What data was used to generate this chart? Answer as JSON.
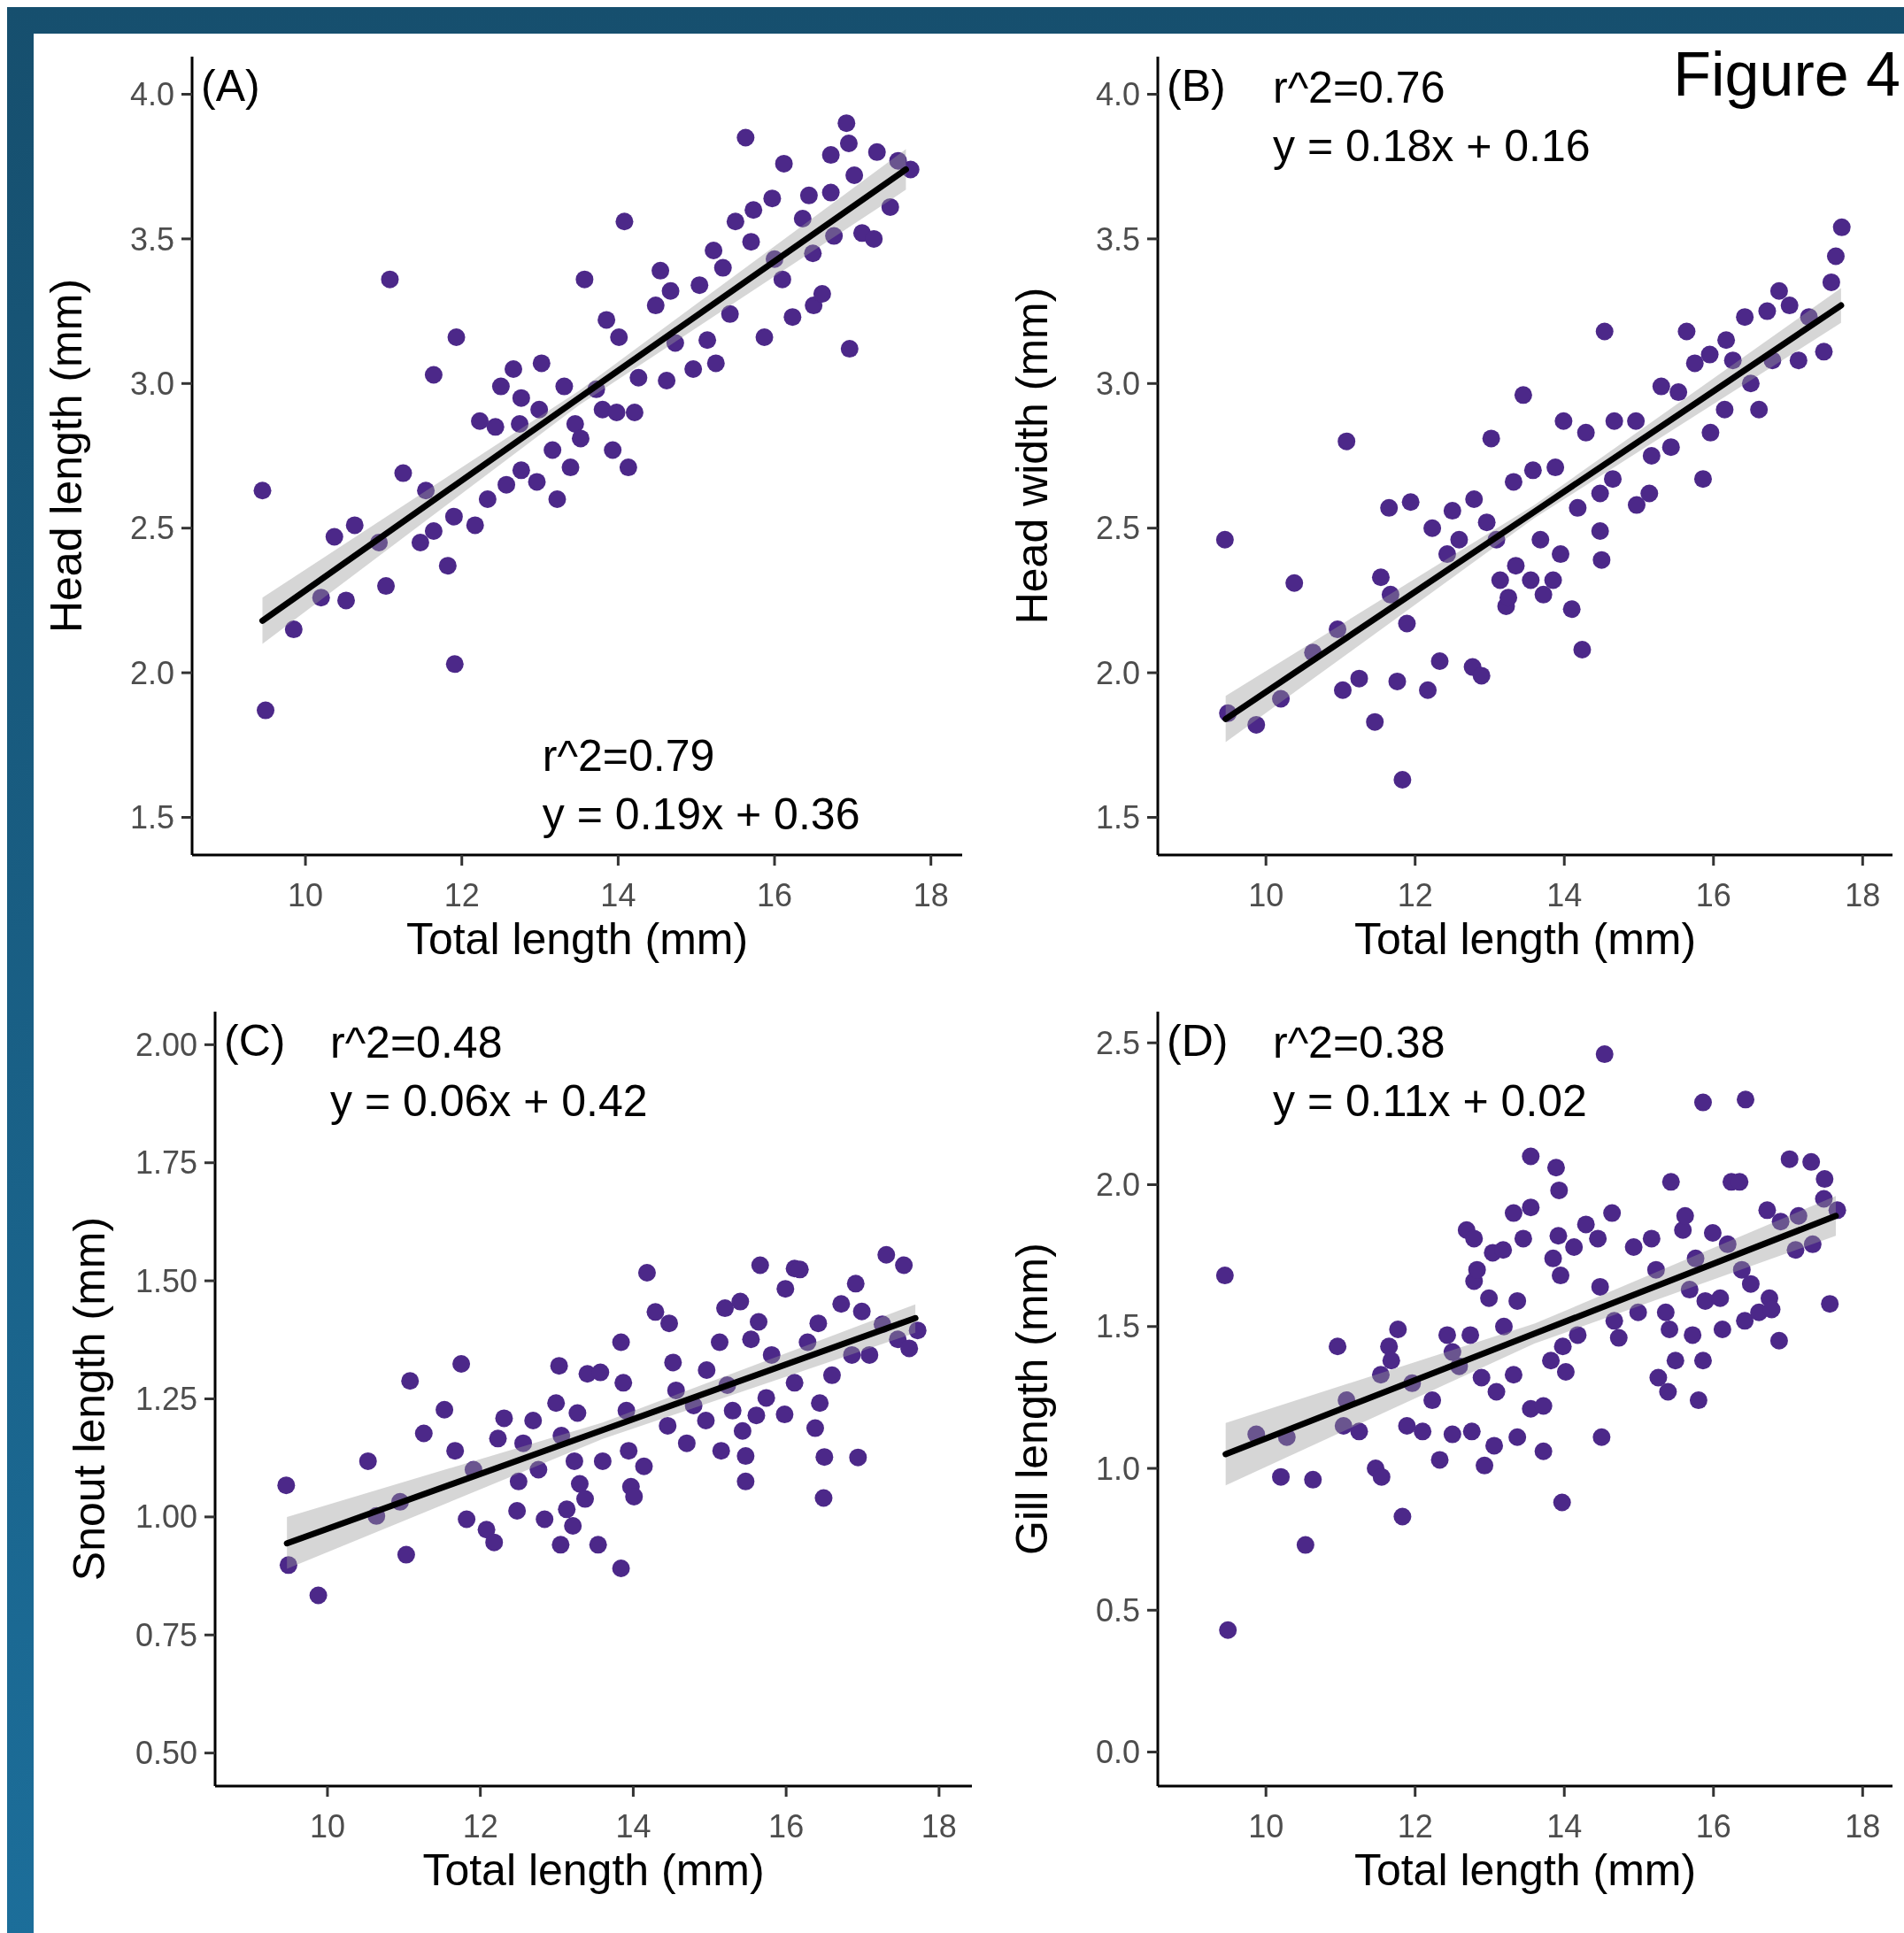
{
  "chart_data": [
    {
      "type": "scatter",
      "xlabel": "Total length (mm)",
      "ylabel": "Head length (mm)",
      "xlim": [
        8.55,
        18.4
      ],
      "ylim": [
        1.37,
        4.13
      ],
      "xticks": [
        10,
        12,
        14,
        16,
        18
      ],
      "yticks": [
        {
          "value": 1.5,
          "label": "1.5"
        },
        {
          "value": 2,
          "label": "2.0"
        },
        {
          "value": 2.5,
          "label": "2.5"
        },
        {
          "value": 3,
          "label": "3.0"
        },
        {
          "value": 3.5,
          "label": "3.5"
        },
        {
          "value": 4,
          "label": "4.0"
        }
      ],
      "annotations": [
        "(A)",
        "r^2=0.79",
        "y = 0.19x + 0.36"
      ],
      "series": [
        {
          "marker": "circle",
          "color": "#4c2889",
          "x": [
            9.45,
            9.49,
            9.85,
            10.2,
            10.52,
            10.37,
            10.63,
            10.94,
            11.03,
            11.08,
            11.25,
            11.54,
            11.47,
            11.64,
            11.82,
            11.9,
            11.64,
            11.93,
            11.91,
            12.17,
            12.23,
            12.33,
            12.43,
            12.5,
            12.57,
            12.66,
            12.76,
            12.76,
            12.74,
            13.02,
            12.99,
            12.96,
            13.16,
            13.22,
            13.31,
            13.39,
            13.45,
            13.57,
            13.52,
            13.72,
            13.8,
            13.93,
            14.13,
            13.85,
            14.01,
            13.98,
            14.08,
            14.21,
            14.26,
            14.48,
            14.54,
            14.62,
            14.67,
            14.73,
            14.96,
            15.14,
            15.25,
            15.04,
            15.22,
            15.34,
            15.43,
            15.5,
            15.63,
            15.73,
            15.7,
            15.87,
            15.97,
            16.0,
            16.12,
            16.1,
            16.23,
            16.36,
            16.44,
            16.49,
            16.5,
            16.61,
            16.72,
            16.72,
            16.76,
            16.92,
            16.95,
            16.96,
            17.02,
            17.12,
            17.27,
            17.31,
            17.48,
            17.58,
            17.74
          ],
          "values": [
            2.63,
            1.87,
            2.15,
            2.26,
            2.25,
            2.47,
            2.51,
            2.45,
            2.3,
            3.36,
            2.69,
            2.63,
            2.45,
            2.49,
            2.37,
            2.54,
            3.03,
            3.16,
            2.03,
            2.51,
            2.87,
            2.6,
            2.85,
            2.99,
            2.65,
            3.05,
            2.95,
            2.7,
            2.86,
            3.07,
            2.91,
            2.66,
            2.77,
            2.6,
            2.99,
            2.71,
            2.86,
            3.36,
            2.81,
            2.98,
            2.91,
            2.77,
            2.71,
            3.22,
            3.16,
            2.9,
            3.56,
            2.9,
            3.02,
            3.27,
            3.39,
            3.01,
            3.32,
            3.14,
            3.05,
            3.15,
            3.07,
            3.34,
            3.46,
            3.4,
            3.24,
            3.56,
            3.85,
            3.6,
            3.49,
            3.16,
            3.64,
            3.43,
            3.76,
            3.36,
            3.23,
            3.57,
            3.65,
            3.45,
            3.27,
            3.31,
            3.79,
            3.66,
            3.51,
            3.9,
            3.83,
            3.12,
            3.72,
            3.52,
            3.5,
            3.8,
            3.61,
            3.77,
            3.74
          ]
        },
        {
          "type": "line",
          "color": "#000000",
          "x": [
            9.45,
            13.5,
            17.68
          ],
          "values": [
            2.18,
            2.95,
            3.74
          ],
          "lower": [
            2.1,
            2.925,
            3.67
          ],
          "upper": [
            2.26,
            2.975,
            3.81
          ]
        }
      ]
    },
    {
      "type": "scatter",
      "xlabel": "Total length (mm)",
      "ylabel": "Head width (mm)",
      "xlim": [
        8.55,
        18.4
      ],
      "ylim": [
        1.37,
        4.13
      ],
      "xticks": [
        10,
        12,
        14,
        16,
        18
      ],
      "yticks": [
        {
          "value": 1.5,
          "label": "1.5"
        },
        {
          "value": 2,
          "label": "2.0"
        },
        {
          "value": 2.5,
          "label": "2.5"
        },
        {
          "value": 3,
          "label": "3.0"
        },
        {
          "value": 3.5,
          "label": "3.5"
        },
        {
          "value": 4,
          "label": "4.0"
        }
      ],
      "annotations": [
        "(B)",
        "r^2=0.76",
        "y = 0.18x + 0.16",
        "Figure 4"
      ],
      "series": [
        {
          "marker": "circle",
          "color": "#4c2889",
          "x": [
            9.45,
            9.49,
            9.87,
            10.2,
            10.38,
            10.63,
            10.96,
            11.03,
            11.25,
            11.08,
            11.46,
            11.54,
            11.67,
            11.65,
            11.76,
            11.83,
            11.89,
            11.94,
            12.17,
            12.23,
            12.33,
            12.43,
            12.5,
            12.59,
            12.77,
            12.89,
            12.79,
            12.96,
            13.02,
            13.09,
            13.14,
            13.22,
            13.25,
            13.32,
            13.35,
            13.45,
            13.55,
            13.58,
            13.72,
            13.68,
            13.85,
            13.88,
            13.95,
            13.99,
            14.1,
            14.18,
            14.24,
            14.29,
            14.48,
            14.5,
            14.54,
            14.48,
            14.65,
            14.67,
            14.96,
            14.97,
            15.14,
            15.17,
            15.3,
            15.43,
            15.53,
            15.64,
            15.75,
            15.86,
            15.96,
            15.95,
            16.15,
            16.17,
            16.26,
            16.42,
            16.5,
            16.61,
            16.72,
            16.79,
            16.88,
            17.02,
            17.14,
            17.28,
            17.48,
            17.58,
            17.64,
            17.72
          ],
          "values": [
            2.46,
            1.86,
            1.82,
            1.91,
            2.31,
            2.07,
            2.15,
            1.94,
            1.98,
            2.8,
            1.83,
            2.33,
            2.27,
            2.57,
            1.97,
            1.63,
            2.17,
            2.59,
            1.94,
            2.5,
            2.04,
            2.41,
            2.56,
            2.46,
            2.02,
            1.99,
            2.6,
            2.52,
            2.81,
            2.46,
            2.32,
            2.23,
            2.26,
            2.66,
            2.37,
            2.96,
            2.32,
            2.7,
            2.27,
            2.46,
            2.32,
            2.71,
            2.41,
            2.87,
            2.22,
            2.57,
            2.08,
            2.83,
            2.49,
            2.39,
            3.18,
            2.62,
            2.67,
            2.87,
            2.87,
            2.58,
            2.62,
            2.75,
            2.99,
            2.78,
            2.97,
            3.18,
            3.07,
            2.67,
            2.83,
            3.1,
            2.91,
            3.15,
            3.08,
            3.23,
            3.0,
            2.91,
            3.25,
            3.08,
            3.32,
            3.27,
            3.08,
            3.23,
            3.11,
            3.35,
            3.44,
            3.54
          ]
        },
        {
          "type": "line",
          "color": "#000000",
          "x": [
            9.46,
            13.6,
            17.71
          ],
          "values": [
            1.84,
            2.557,
            3.27
          ],
          "lower": [
            1.76,
            2.535,
            3.21
          ],
          "upper": [
            1.92,
            2.58,
            3.33
          ]
        }
      ]
    },
    {
      "type": "scatter",
      "xlabel": "Total length (mm)",
      "ylabel": "Snout length (mm)",
      "xlim": [
        8.53,
        18.43
      ],
      "ylim": [
        0.43,
        2.07
      ],
      "xticks": [
        10,
        12,
        14,
        16,
        18
      ],
      "yticks": [
        {
          "value": 0.5,
          "label": "0.50"
        },
        {
          "value": 0.75,
          "label": "0.75"
        },
        {
          "value": 1,
          "label": "1.00"
        },
        {
          "value": 1.25,
          "label": "1.25"
        },
        {
          "value": 1.5,
          "label": "1.50"
        },
        {
          "value": 1.75,
          "label": "1.75"
        },
        {
          "value": 2,
          "label": "2.00"
        }
      ],
      "annotations": [
        "(C)",
        "r^2=0.48",
        "y = 0.06x + 0.42"
      ],
      "series": [
        {
          "marker": "circle",
          "color": "#4c2889",
          "x": [
            9.46,
            9.49,
            9.88,
            10.53,
            10.64,
            10.95,
            11.03,
            11.08,
            11.26,
            11.53,
            11.67,
            11.75,
            11.82,
            11.91,
            12.08,
            12.18,
            12.23,
            12.31,
            12.48,
            12.5,
            12.56,
            12.69,
            12.76,
            12.84,
            12.99,
            13.03,
            13.05,
            13.06,
            13.13,
            13.21,
            13.23,
            13.27,
            13.3,
            13.37,
            13.4,
            13.54,
            13.57,
            13.6,
            13.84,
            13.84,
            13.87,
            13.91,
            13.94,
            13.97,
            14.01,
            14.18,
            14.14,
            14.29,
            14.47,
            14.45,
            14.52,
            14.56,
            14.7,
            14.79,
            14.95,
            14.96,
            15.13,
            15.15,
            15.2,
            15.23,
            15.3,
            15.4,
            15.43,
            15.47,
            15.47,
            15.54,
            15.61,
            15.64,
            15.66,
            15.74,
            15.81,
            15.98,
            15.99,
            16.11,
            16.11,
            16.18,
            16.28,
            16.38,
            16.42,
            16.44,
            16.49,
            16.5,
            16.6,
            16.72,
            16.86,
            16.91,
            16.94,
            16.99,
            17.09,
            17.26,
            17.31,
            17.46,
            17.54,
            17.61,
            17.72
          ],
          "values": [
            1.067,
            0.898,
            0.834,
            1.118,
            1.002,
            1.032,
            0.92,
            1.288,
            1.177,
            1.227,
            1.14,
            1.324,
            0.995,
            1.1,
            0.973,
            0.946,
            1.166,
            1.209,
            1.013,
            1.075,
            1.156,
            1.204,
            1.1,
            0.995,
            1.241,
            1.32,
            0.941,
            1.172,
            1.016,
            0.981,
            1.118,
            1.22,
            1.07,
            1.038,
            1.303,
            0.941,
            1.306,
            1.118,
            0.891,
            1.37,
            1.284,
            1.225,
            1.14,
            1.064,
            1.043,
            1.517,
            1.107,
            1.434,
            1.41,
            1.193,
            1.327,
            1.268,
            1.156,
            1.236,
            1.204,
            1.311,
            1.37,
            1.14,
            1.442,
            1.279,
            1.225,
            1.456,
            1.182,
            1.075,
            1.129,
            1.376,
            1.215,
            1.413,
            1.533,
            1.252,
            1.343,
            1.217,
            1.483,
            1.526,
            1.284,
            1.524,
            1.37,
            1.188,
            1.41,
            1.241,
            1.04,
            1.127,
            1.3,
            1.451,
            1.343,
            1.494,
            1.126,
            1.435,
            1.343,
            1.408,
            1.555,
            1.376,
            1.533,
            1.357,
            1.395
          ]
        },
        {
          "type": "line",
          "color": "#000000",
          "x": [
            9.47,
            13.6,
            17.69
          ],
          "values": [
            0.944,
            1.184,
            1.421
          ],
          "lower": [
            0.89,
            1.165,
            1.39
          ],
          "upper": [
            1.0,
            1.2,
            1.45
          ]
        }
      ]
    },
    {
      "type": "scatter",
      "xlabel": "Total length (mm)",
      "ylabel": "Gill length (mm)",
      "xlim": [
        8.55,
        18.4
      ],
      "ylim": [
        -0.12,
        2.61
      ],
      "xticks": [
        10,
        12,
        14,
        16,
        18
      ],
      "yticks": [
        {
          "value": 0,
          "label": "0.0"
        },
        {
          "value": 0.5,
          "label": "0.5"
        },
        {
          "value": 1,
          "label": "1.0"
        },
        {
          "value": 1.5,
          "label": "1.5"
        },
        {
          "value": 2,
          "label": "2.0"
        },
        {
          "value": 2.5,
          "label": "2.5"
        }
      ],
      "annotations": [
        "(D)",
        "r^2=0.38",
        "y = 0.11x + 0.02"
      ],
      "series": [
        {
          "marker": "circle",
          "color": "#4c2889",
          "x": [
            9.45,
            9.49,
            9.87,
            10.2,
            10.28,
            10.53,
            10.63,
            10.96,
            11.08,
            11.04,
            11.25,
            11.47,
            11.55,
            11.54,
            11.65,
            11.68,
            11.77,
            11.83,
            11.89,
            11.96,
            12.1,
            12.23,
            12.33,
            12.43,
            12.5,
            12.5,
            12.59,
            12.69,
            12.74,
            12.76,
            12.79,
            12.79,
            12.83,
            12.89,
            12.93,
            12.99,
            13.04,
            13.06,
            13.09,
            13.18,
            13.19,
            13.32,
            13.32,
            13.37,
            13.37,
            13.45,
            13.55,
            13.55,
            13.55,
            13.72,
            13.72,
            13.82,
            13.85,
            13.89,
            13.93,
            13.92,
            13.95,
            13.97,
            13.98,
            14.02,
            14.18,
            14.13,
            14.29,
            14.5,
            14.45,
            14.48,
            14.54,
            14.64,
            14.67,
            14.73,
            14.93,
            14.99,
            15.17,
            15.23,
            15.26,
            15.36,
            15.39,
            15.41,
            15.43,
            15.49,
            15.59,
            15.62,
            15.68,
            15.72,
            15.76,
            15.8,
            15.86,
            15.86,
            15.89,
            15.99,
            16.09,
            16.12,
            16.19,
            16.24,
            16.35,
            16.38,
            16.43,
            16.42,
            16.5,
            16.61,
            16.72,
            16.75,
            16.78,
            16.88,
            16.9,
            17.02,
            17.1,
            17.14,
            17.31,
            17.33,
            17.49,
            17.48,
            17.56,
            17.66
          ],
          "values": [
            1.68,
            0.43,
            1.12,
            0.97,
            1.11,
            0.73,
            0.96,
            1.43,
            1.24,
            1.15,
            1.13,
            1.0,
            0.97,
            1.33,
            1.43,
            1.38,
            1.49,
            0.83,
            1.15,
            1.3,
            1.13,
            1.24,
            1.03,
            1.47,
            1.12,
            1.41,
            1.36,
            1.84,
            1.47,
            1.13,
            1.81,
            1.66,
            1.7,
            1.32,
            1.01,
            1.6,
            1.76,
            1.08,
            1.27,
            1.77,
            1.5,
            1.9,
            1.33,
            1.59,
            1.11,
            1.81,
            1.92,
            1.21,
            2.1,
            1.06,
            1.22,
            1.38,
            1.74,
            2.06,
            1.98,
            1.82,
            1.68,
            0.88,
            1.43,
            1.34,
            1.47,
            1.78,
            1.86,
            1.11,
            1.81,
            1.64,
            2.46,
            1.9,
            1.52,
            1.46,
            1.78,
            1.55,
            1.81,
            1.7,
            1.32,
            1.55,
            1.27,
            1.49,
            2.01,
            1.38,
            1.84,
            1.89,
            1.63,
            1.47,
            1.74,
            1.24,
            1.38,
            2.29,
            1.59,
            1.83,
            1.6,
            1.49,
            1.79,
            2.01,
            2.01,
            1.7,
            2.3,
            1.52,
            1.65,
            1.55,
            1.91,
            1.6,
            1.56,
            1.45,
            1.87,
            2.09,
            1.77,
            1.89,
            2.08,
            1.79,
            2.02,
            1.95,
            1.58,
            1.91
          ]
        },
        {
          "type": "line",
          "color": "#000000",
          "x": [
            9.46,
            13.6,
            17.64
          ],
          "values": [
            1.05,
            1.475,
            1.89
          ],
          "lower": [
            0.94,
            1.44,
            1.82
          ],
          "upper": [
            1.16,
            1.51,
            1.96
          ]
        }
      ]
    }
  ]
}
